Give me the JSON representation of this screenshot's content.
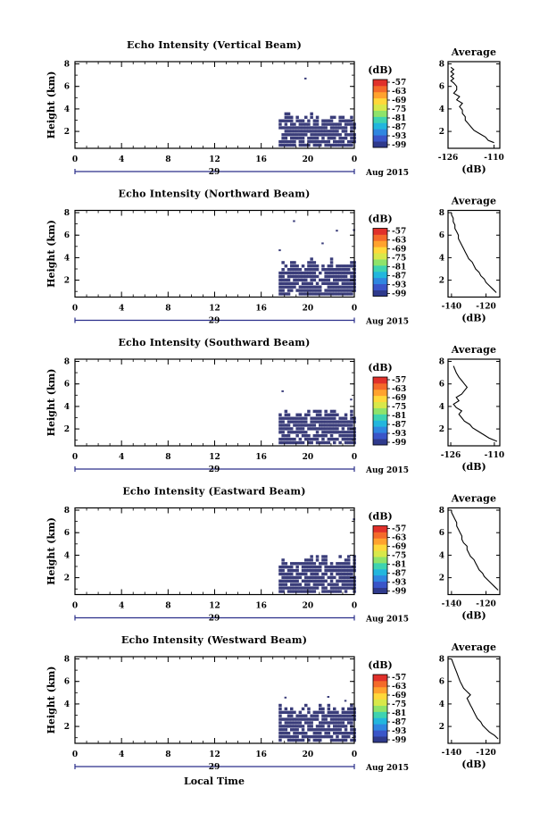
{
  "figure": {
    "xlabel": "Local Time",
    "day_label": "29",
    "month_label": "Aug 2015"
  },
  "colorbar": {
    "unit": "(dB)",
    "ticks": [
      "-57",
      "-63",
      "-69",
      "-75",
      "-81",
      "-87",
      "-93",
      "-99"
    ],
    "colors": [
      "#2f3a8c",
      "#3a55c8",
      "#2f86e0",
      "#22b6dd",
      "#3ed3b0",
      "#8ee36a",
      "#d8e84a",
      "#ffd83a",
      "#ffa22e",
      "#f46a2a",
      "#e0302a"
    ]
  },
  "chart_data": [
    {
      "type": "heatmap",
      "title": "Echo Intensity (Vertical Beam)",
      "ylabel": "Height (km)",
      "x_ticks": [
        "0",
        "4",
        "8",
        "12",
        "16",
        "20",
        "0"
      ],
      "y_ticks": [
        "2",
        "4",
        "6",
        "8"
      ],
      "xlim": [
        0,
        24
      ],
      "ylim": [
        0.5,
        8.2
      ],
      "echo_color": "#3a3d7a",
      "echo_start_hour": 17.5,
      "echo_top_km": 3.2,
      "sparse_top_km": 7.6,
      "average": {
        "title": "Average",
        "xlabel": "(dB)",
        "x_ticks": [
          "-126",
          "-110"
        ],
        "xlim": [
          -126,
          -108
        ],
        "y_ticks": [
          "2",
          "4",
          "6",
          "8"
        ],
        "ylim": [
          0.5,
          8.2
        ],
        "x": [
          -110,
          -112,
          -113,
          -115,
          -117,
          -118,
          -119,
          -120,
          -120,
          -121,
          -121,
          -122,
          -121,
          -123,
          -122,
          -124,
          -123,
          -123,
          -124,
          -125,
          -124,
          -125,
          -124,
          -125,
          -124,
          -125
        ],
        "y": [
          1.0,
          1.2,
          1.5,
          1.8,
          2.1,
          2.4,
          2.7,
          3.0,
          3.3,
          3.6,
          3.9,
          4.2,
          4.5,
          4.8,
          5.1,
          5.4,
          5.7,
          6.0,
          6.3,
          6.5,
          6.7,
          6.9,
          7.1,
          7.3,
          7.5,
          7.7
        ]
      }
    },
    {
      "type": "heatmap",
      "title": "Echo Intensity (Northward Beam)",
      "ylabel": "Height (km)",
      "x_ticks": [
        "0",
        "4",
        "8",
        "12",
        "16",
        "20",
        "0"
      ],
      "y_ticks": [
        "2",
        "4",
        "6",
        "8"
      ],
      "xlim": [
        0,
        24
      ],
      "ylim": [
        0.5,
        8.2
      ],
      "echo_color": "#3a3d7a",
      "echo_start_hour": 17.5,
      "echo_top_km": 3.3,
      "sparse_top_km": 7.5,
      "average": {
        "title": "Average",
        "xlabel": "(dB)",
        "x_ticks": [
          "-140",
          "-120"
        ],
        "xlim": [
          -142,
          -112
        ],
        "y_ticks": [
          "2",
          "4",
          "6",
          "8"
        ],
        "ylim": [
          0.5,
          8.2
        ],
        "x": [
          -114,
          -116,
          -118,
          -120,
          -121,
          -123,
          -124,
          -126,
          -127,
          -128,
          -130,
          -131,
          -132,
          -133,
          -134,
          -135,
          -136,
          -136,
          -137,
          -138,
          -138,
          -139,
          -139,
          -140,
          -140
        ],
        "y": [
          0.9,
          1.2,
          1.5,
          1.8,
          2.1,
          2.4,
          2.7,
          3.0,
          3.3,
          3.6,
          3.9,
          4.2,
          4.5,
          4.8,
          5.1,
          5.4,
          5.7,
          6.0,
          6.3,
          6.6,
          6.9,
          7.2,
          7.5,
          7.8,
          8.0
        ]
      }
    },
    {
      "type": "heatmap",
      "title": "Echo Intensity (Southward Beam)",
      "ylabel": "Height (km)",
      "x_ticks": [
        "0",
        "4",
        "8",
        "12",
        "16",
        "20",
        "0"
      ],
      "y_ticks": [
        "2",
        "4",
        "6",
        "8"
      ],
      "xlim": [
        0,
        24
      ],
      "ylim": [
        0.5,
        8.2
      ],
      "echo_color": "#3a3d7a",
      "echo_start_hour": 17.5,
      "echo_top_km": 3.3,
      "sparse_top_km": 6.5,
      "average": {
        "title": "Average",
        "xlabel": "(dB)",
        "x_ticks": [
          "-126",
          "-110"
        ],
        "xlim": [
          -127,
          -108
        ],
        "y_ticks": [
          "2",
          "4",
          "6",
          "8"
        ],
        "ylim": [
          0.5,
          8.2
        ],
        "x": [
          -109,
          -112,
          -114,
          -116,
          -118,
          -119,
          -121,
          -122,
          -123,
          -122,
          -124,
          -125,
          -123,
          -124,
          -122,
          -121,
          -120,
          -121,
          -122,
          -123,
          -124,
          -125
        ],
        "y": [
          0.9,
          1.2,
          1.5,
          1.8,
          2.1,
          2.4,
          2.7,
          3.0,
          3.3,
          3.6,
          3.9,
          4.2,
          4.5,
          4.8,
          5.1,
          5.4,
          5.7,
          6.0,
          6.3,
          6.6,
          7.0,
          7.6
        ]
      }
    },
    {
      "type": "heatmap",
      "title": "Echo Intensity (Eastward Beam)",
      "ylabel": "Height (km)",
      "x_ticks": [
        "0",
        "4",
        "8",
        "12",
        "16",
        "20",
        "0"
      ],
      "y_ticks": [
        "2",
        "4",
        "6",
        "8"
      ],
      "xlim": [
        0,
        24
      ],
      "ylim": [
        0.5,
        8.2
      ],
      "echo_color": "#3a3d7a",
      "echo_start_hour": 17.5,
      "echo_top_km": 3.4,
      "sparse_top_km": 7.8,
      "average": {
        "title": "Average",
        "xlabel": "(dB)",
        "x_ticks": [
          "-140",
          "-120"
        ],
        "xlim": [
          -142,
          -112
        ],
        "y_ticks": [
          "2",
          "4",
          "6",
          "8"
        ],
        "ylim": [
          0.5,
          8.2
        ],
        "x": [
          -113,
          -115,
          -117,
          -119,
          -121,
          -122,
          -124,
          -125,
          -126,
          -127,
          -129,
          -130,
          -131,
          -131,
          -133,
          -134,
          -134,
          -135,
          -136,
          -137,
          -137,
          -138,
          -139,
          -140,
          -140
        ],
        "y": [
          0.9,
          1.2,
          1.5,
          1.8,
          2.1,
          2.4,
          2.7,
          3.0,
          3.3,
          3.6,
          3.9,
          4.2,
          4.5,
          4.8,
          5.1,
          5.4,
          5.7,
          6.0,
          6.3,
          6.6,
          6.9,
          7.2,
          7.5,
          7.8,
          8.0
        ]
      }
    },
    {
      "type": "heatmap",
      "title": "Echo Intensity (Westward Beam)",
      "ylabel": "Height (km)",
      "x_ticks": [
        "0",
        "4",
        "8",
        "12",
        "16",
        "20",
        "0"
      ],
      "y_ticks": [
        "2",
        "4",
        "6",
        "8"
      ],
      "xlim": [
        0,
        24
      ],
      "ylim": [
        0.5,
        8.2
      ],
      "echo_color": "#3a3d7a",
      "echo_start_hour": 17.5,
      "echo_top_km": 3.5,
      "sparse_top_km": 6.0,
      "average": {
        "title": "Average",
        "xlabel": "(dB)",
        "x_ticks": [
          "-140",
          "-120"
        ],
        "xlim": [
          -142,
          -112
        ],
        "y_ticks": [
          "2",
          "4",
          "6",
          "8"
        ],
        "ylim": [
          0.5,
          8.2
        ],
        "x": [
          -113,
          -115,
          -118,
          -120,
          -122,
          -123,
          -125,
          -126,
          -127,
          -128,
          -129,
          -130,
          -131,
          -129,
          -131,
          -133,
          -134,
          -135,
          -136,
          -137,
          -138,
          -139,
          -140
        ],
        "y": [
          0.9,
          1.2,
          1.5,
          1.8,
          2.1,
          2.4,
          2.7,
          3.0,
          3.3,
          3.6,
          3.9,
          4.2,
          4.5,
          4.8,
          5.1,
          5.4,
          5.7,
          6.0,
          6.4,
          6.8,
          7.2,
          7.6,
          8.0
        ]
      }
    }
  ]
}
